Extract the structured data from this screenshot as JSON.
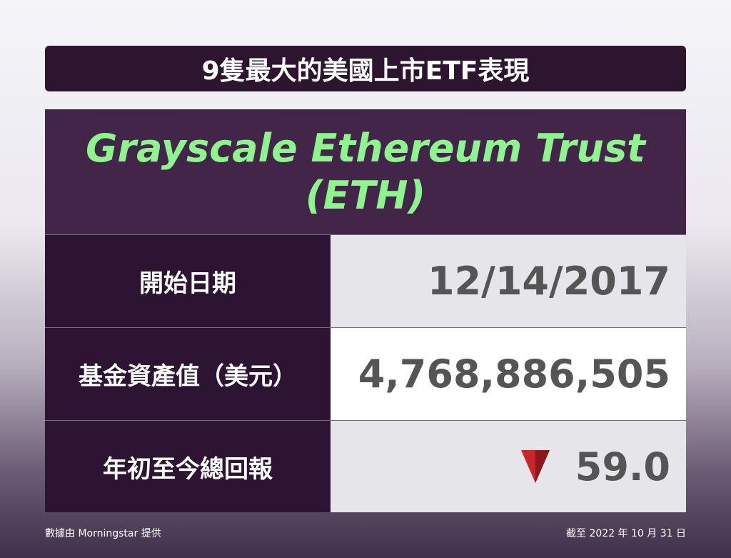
{
  "header": {
    "title": "9隻最大的美國上市ETF表現"
  },
  "card": {
    "title_lines": [
      "Grayscale Ethereum Trust",
      "(ETH)"
    ],
    "rows": [
      {
        "label": "開始日期",
        "value": "12/14/2017"
      },
      {
        "label": "基金資產值（美元）",
        "value": "4,768,886,505"
      },
      {
        "label": "年初至今總回報",
        "value": "59.0"
      }
    ]
  },
  "footer": {
    "source": "數據由 Morningstar 提供",
    "date": "截至 2022 年 10 月 31 日"
  }
}
